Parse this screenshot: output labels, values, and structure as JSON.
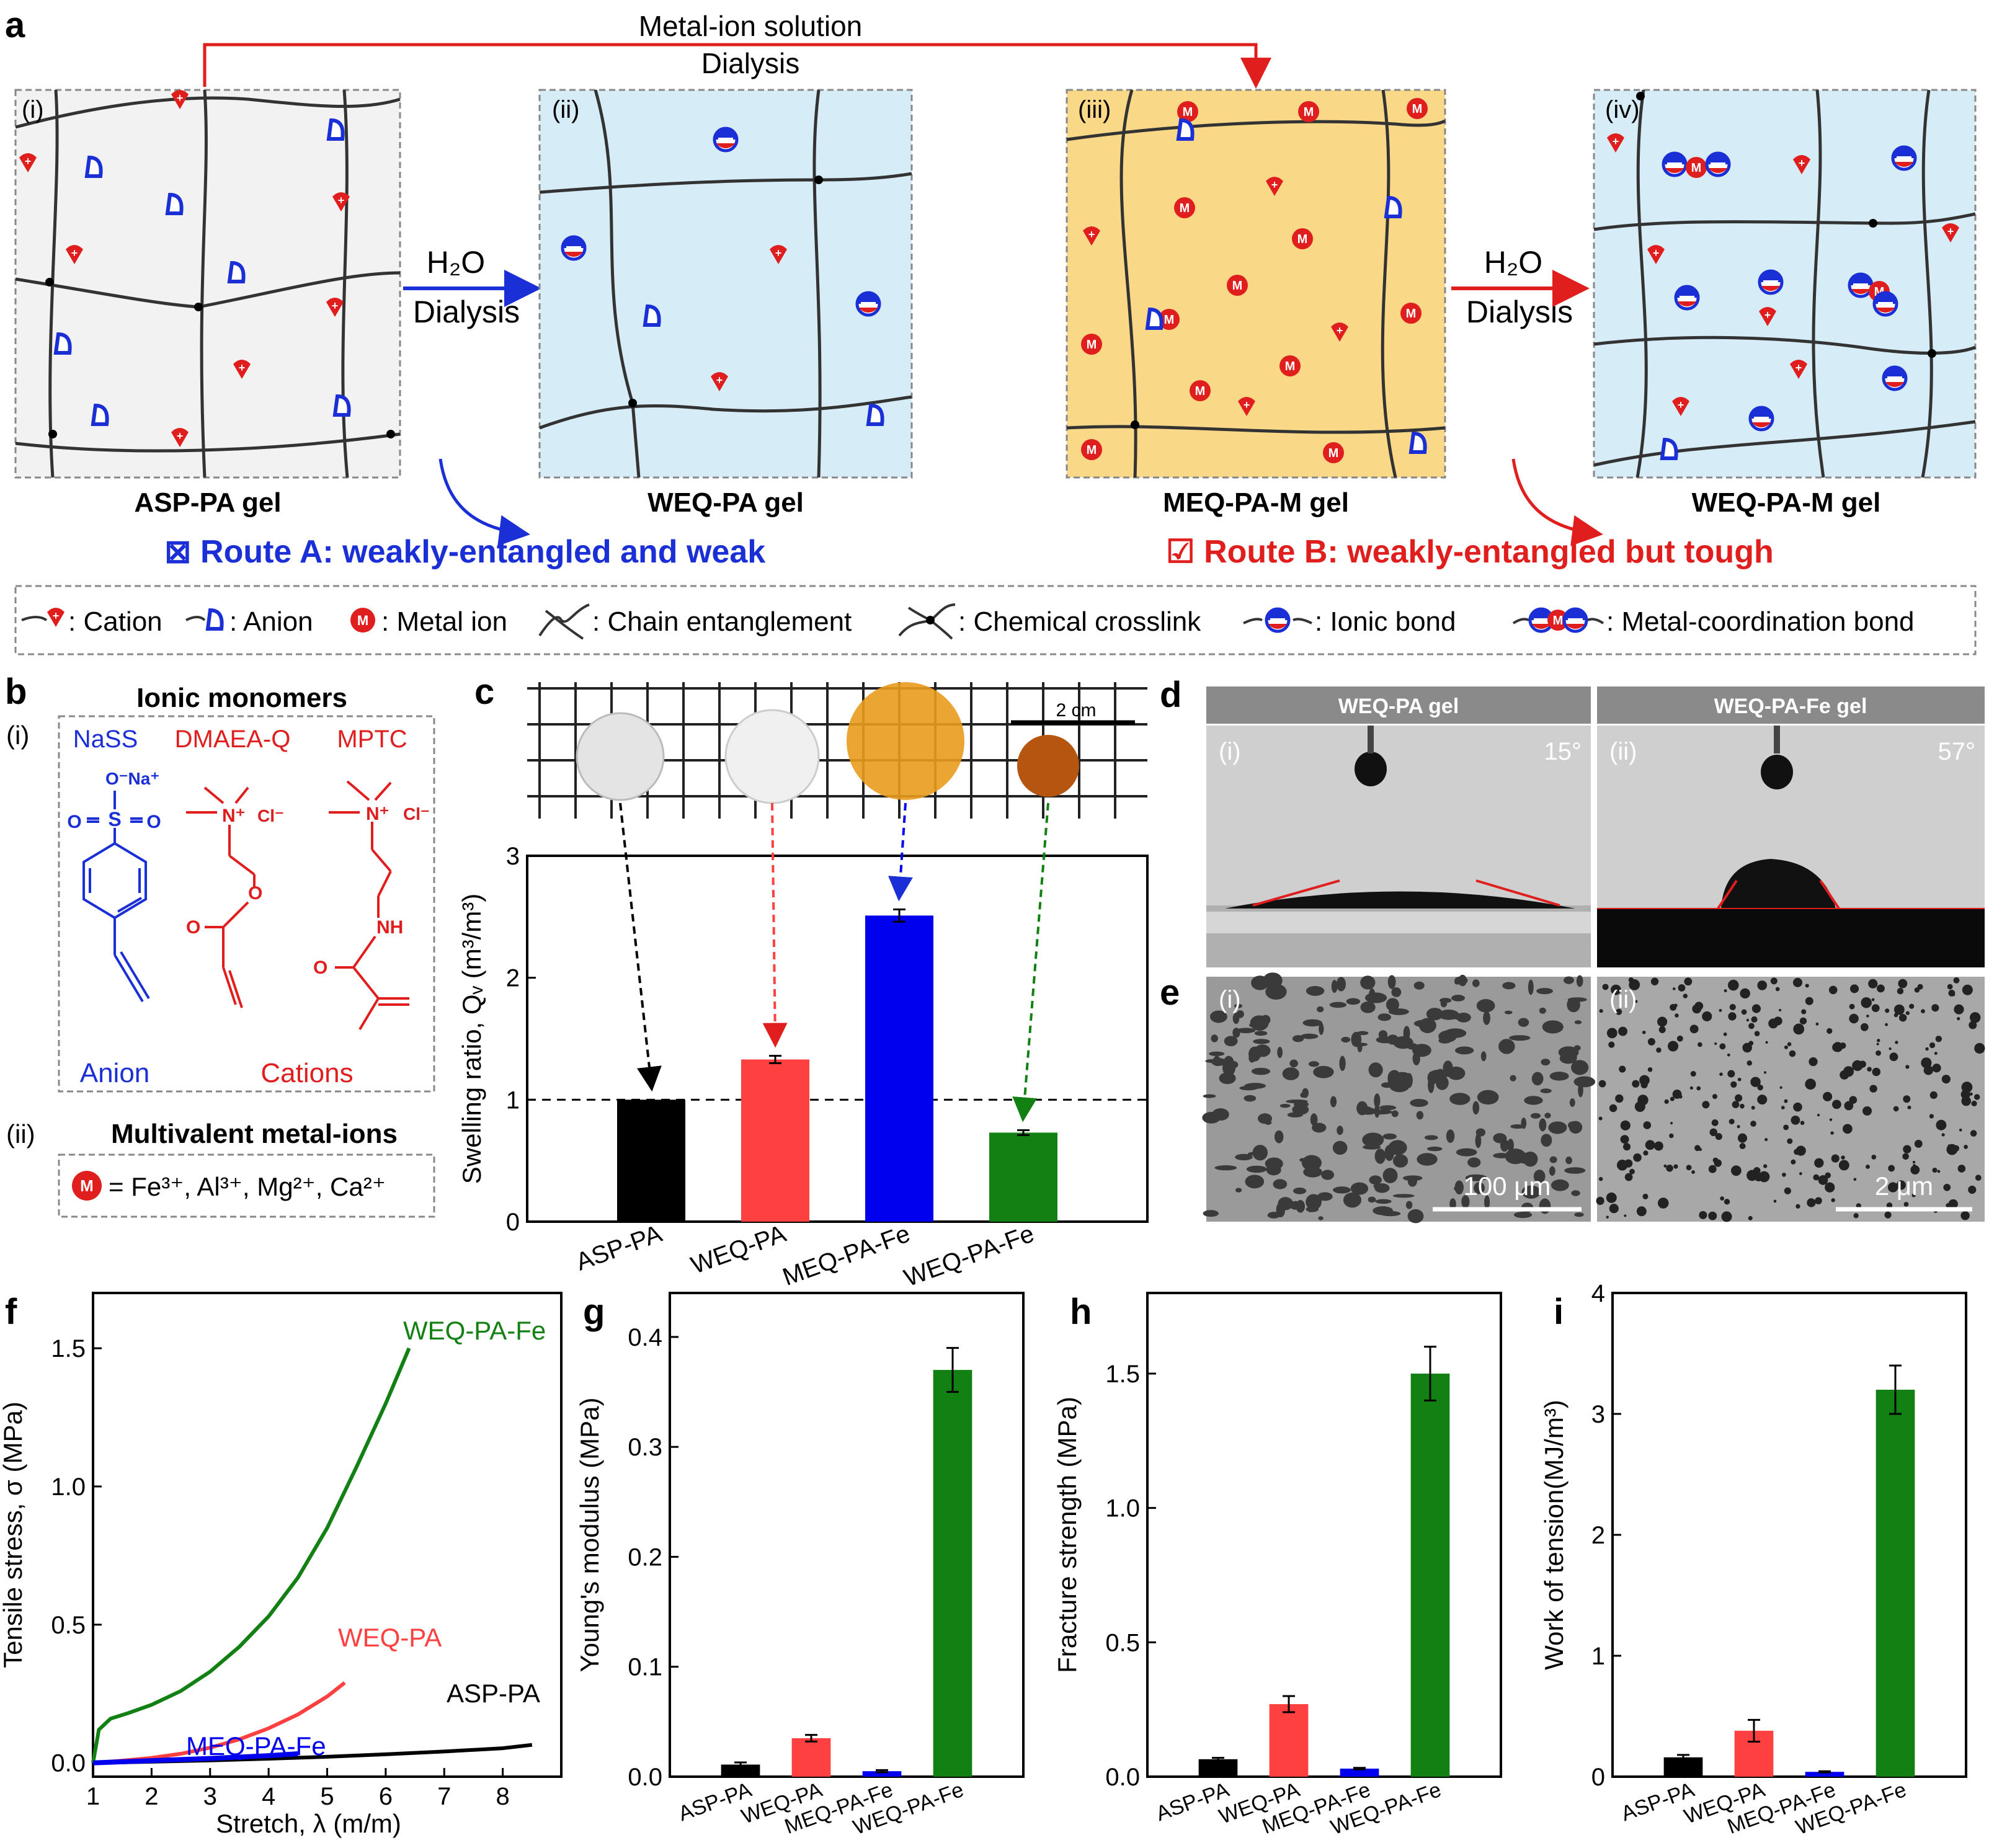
{
  "panel_labels": {
    "a": "a",
    "b": "b",
    "c": "c",
    "d": "d",
    "e": "e",
    "f": "f",
    "g": "g",
    "h": "h",
    "i": "i"
  },
  "panel_a": {
    "top_arrow_line1": "Metal-ion solution",
    "top_arrow_line2": "Dialysis",
    "h2o": "H₂O",
    "dialysis": "Dialysis",
    "sub": [
      "(i)",
      "(ii)",
      "(iii)",
      "(iv)"
    ],
    "gels": [
      "ASP-PA gel",
      "WEQ-PA gel",
      "MEQ-PA-M gel",
      "WEQ-PA-M gel"
    ],
    "route_a": "⊠ Route A: weakly-entangled and weak",
    "route_b": "☑ Route B: weakly-entangled but tough",
    "legend": {
      "cation": ": Cation",
      "anion": ": Anion",
      "metal": ": Metal ion",
      "entangle": ": Chain entanglement",
      "crosslink": ": Chemical crosslink",
      "ionic": ": Ionic bond",
      "coord": ": Metal-coordination bond",
      "m": "M"
    },
    "colors": {
      "route_a": "#1a2fd6",
      "route_b": "#e01e1e",
      "gel_i": "#f2f2f2",
      "gel_ii": "#d6ecf6",
      "gel_iii": "#f9d888",
      "gel_iv": "#d6ecf6"
    }
  },
  "panel_b": {
    "title": "Ionic monomers",
    "sub_i": "(i)",
    "sub_ii": "(ii)",
    "monomers": [
      "NaSS",
      "DMAEA-Q",
      "MPTC"
    ],
    "anion": "Anion",
    "cations": "Cations",
    "metals_title": "Multivalent metal-ions",
    "metals_formula": "= Fe³⁺, Al³⁺, Mg²⁺, Ca²⁺",
    "atoms": {
      "o_na": "O⁻Na⁺",
      "s": "S",
      "o": "O",
      "n_plus": "N⁺",
      "cl": "Cl⁻",
      "nh": "NH"
    }
  },
  "panel_c": {
    "scale": "2 cm",
    "chart_data": {
      "type": "bar",
      "categories": [
        "ASP-PA",
        "WEQ-PA",
        "MEQ-PA-Fe",
        "WEQ-PA-Fe"
      ],
      "values": [
        1.0,
        1.33,
        2.51,
        0.73
      ],
      "errors": [
        0.0,
        0.03,
        0.05,
        0.02
      ],
      "colors": [
        "#000000",
        "#ff4040",
        "#0000ee",
        "#138013"
      ],
      "ylabel": "Swelling ratio, Qᵥ (m³/m³)",
      "ylim": [
        0,
        3
      ],
      "yticks": [
        "0",
        "1",
        "2",
        "3"
      ],
      "reference_line": 1
    }
  },
  "panel_d": {
    "titles": [
      "WEQ-PA gel",
      "WEQ-PA-Fe gel"
    ],
    "sub": [
      "(i)",
      "(ii)"
    ],
    "angles": [
      "15°",
      "57°"
    ]
  },
  "panel_e": {
    "sub": [
      "(i)",
      "(ii)"
    ],
    "scales": [
      "100 μm",
      "2 μm"
    ]
  },
  "panel_f": {
    "chart_data": {
      "type": "line",
      "xlabel": "Stretch, λ (m/m)",
      "ylabel": "Tensile stress, σ (MPa)",
      "xlim": [
        1,
        9
      ],
      "ylim": [
        -0.05,
        1.7
      ],
      "xticks": [
        "1",
        "2",
        "3",
        "4",
        "5",
        "6",
        "7",
        "8"
      ],
      "yticks": [
        "0.0",
        "0.5",
        "1.0",
        "1.5"
      ],
      "series": [
        {
          "name": "WEQ-PA-Fe",
          "color": "#138013",
          "x": [
            1,
            1.1,
            1.3,
            1.6,
            2,
            2.5,
            3,
            3.5,
            4,
            4.5,
            5,
            5.5,
            6,
            6.4
          ],
          "y": [
            0,
            0.12,
            0.16,
            0.18,
            0.21,
            0.26,
            0.33,
            0.42,
            0.53,
            0.67,
            0.85,
            1.07,
            1.3,
            1.5
          ]
        },
        {
          "name": "WEQ-PA",
          "color": "#ff4040",
          "x": [
            1,
            1.5,
            2,
            2.5,
            3,
            3.5,
            4,
            4.5,
            5,
            5.3
          ],
          "y": [
            0,
            0.008,
            0.018,
            0.033,
            0.055,
            0.085,
            0.125,
            0.175,
            0.24,
            0.29
          ]
        },
        {
          "name": "ASP-PA",
          "color": "#000000",
          "x": [
            1,
            2,
            3,
            4,
            5,
            6,
            7,
            8,
            8.5
          ],
          "y": [
            0,
            0.004,
            0.009,
            0.015,
            0.022,
            0.031,
            0.041,
            0.053,
            0.065
          ]
        },
        {
          "name": "MEQ-PA-Fe",
          "color": "#0000ee",
          "x": [
            1,
            2,
            3,
            4,
            4.5
          ],
          "y": [
            0,
            0.008,
            0.016,
            0.026,
            0.033
          ]
        }
      ]
    }
  },
  "panel_g": {
    "chart_data": {
      "type": "bar",
      "categories": [
        "ASP-PA",
        "WEQ-PA",
        "MEQ-PA-Fe",
        "WEQ-PA-Fe"
      ],
      "values": [
        0.011,
        0.035,
        0.005,
        0.37
      ],
      "errors": [
        0.002,
        0.003,
        0.001,
        0.02
      ],
      "colors": [
        "#000000",
        "#ff4040",
        "#0000ee",
        "#138013"
      ],
      "ylabel": "Young's  modulus (MPa)",
      "ylim": [
        0,
        0.44
      ],
      "yticks": [
        "0.0",
        "0.1",
        "0.2",
        "0.3",
        "0.4"
      ]
    }
  },
  "panel_h": {
    "chart_data": {
      "type": "bar",
      "categories": [
        "ASP-PA",
        "WEQ-PA",
        "MEQ-PA-Fe",
        "WEQ-PA-Fe"
      ],
      "values": [
        0.065,
        0.27,
        0.03,
        1.5
      ],
      "errors": [
        0.005,
        0.03,
        0.003,
        0.1
      ],
      "colors": [
        "#000000",
        "#ff4040",
        "#0000ee",
        "#138013"
      ],
      "ylabel": "Fracture strength (MPa)",
      "ylim": [
        0,
        1.8
      ],
      "yticks": [
        "0.0",
        "0.5",
        "1.0",
        "1.5"
      ]
    }
  },
  "panel_i": {
    "chart_data": {
      "type": "bar",
      "categories": [
        "ASP-PA",
        "WEQ-PA",
        "MEQ-PA-Fe",
        "WEQ-PA-Fe"
      ],
      "values": [
        0.16,
        0.38,
        0.04,
        3.2
      ],
      "errors": [
        0.02,
        0.09,
        0.005,
        0.2
      ],
      "colors": [
        "#000000",
        "#ff4040",
        "#0000ee",
        "#138013"
      ],
      "ylabel": "Work of tension(MJ/m³)",
      "ylim": [
        0,
        4
      ],
      "yticks": [
        "0",
        "1",
        "2",
        "3",
        "4"
      ]
    }
  }
}
